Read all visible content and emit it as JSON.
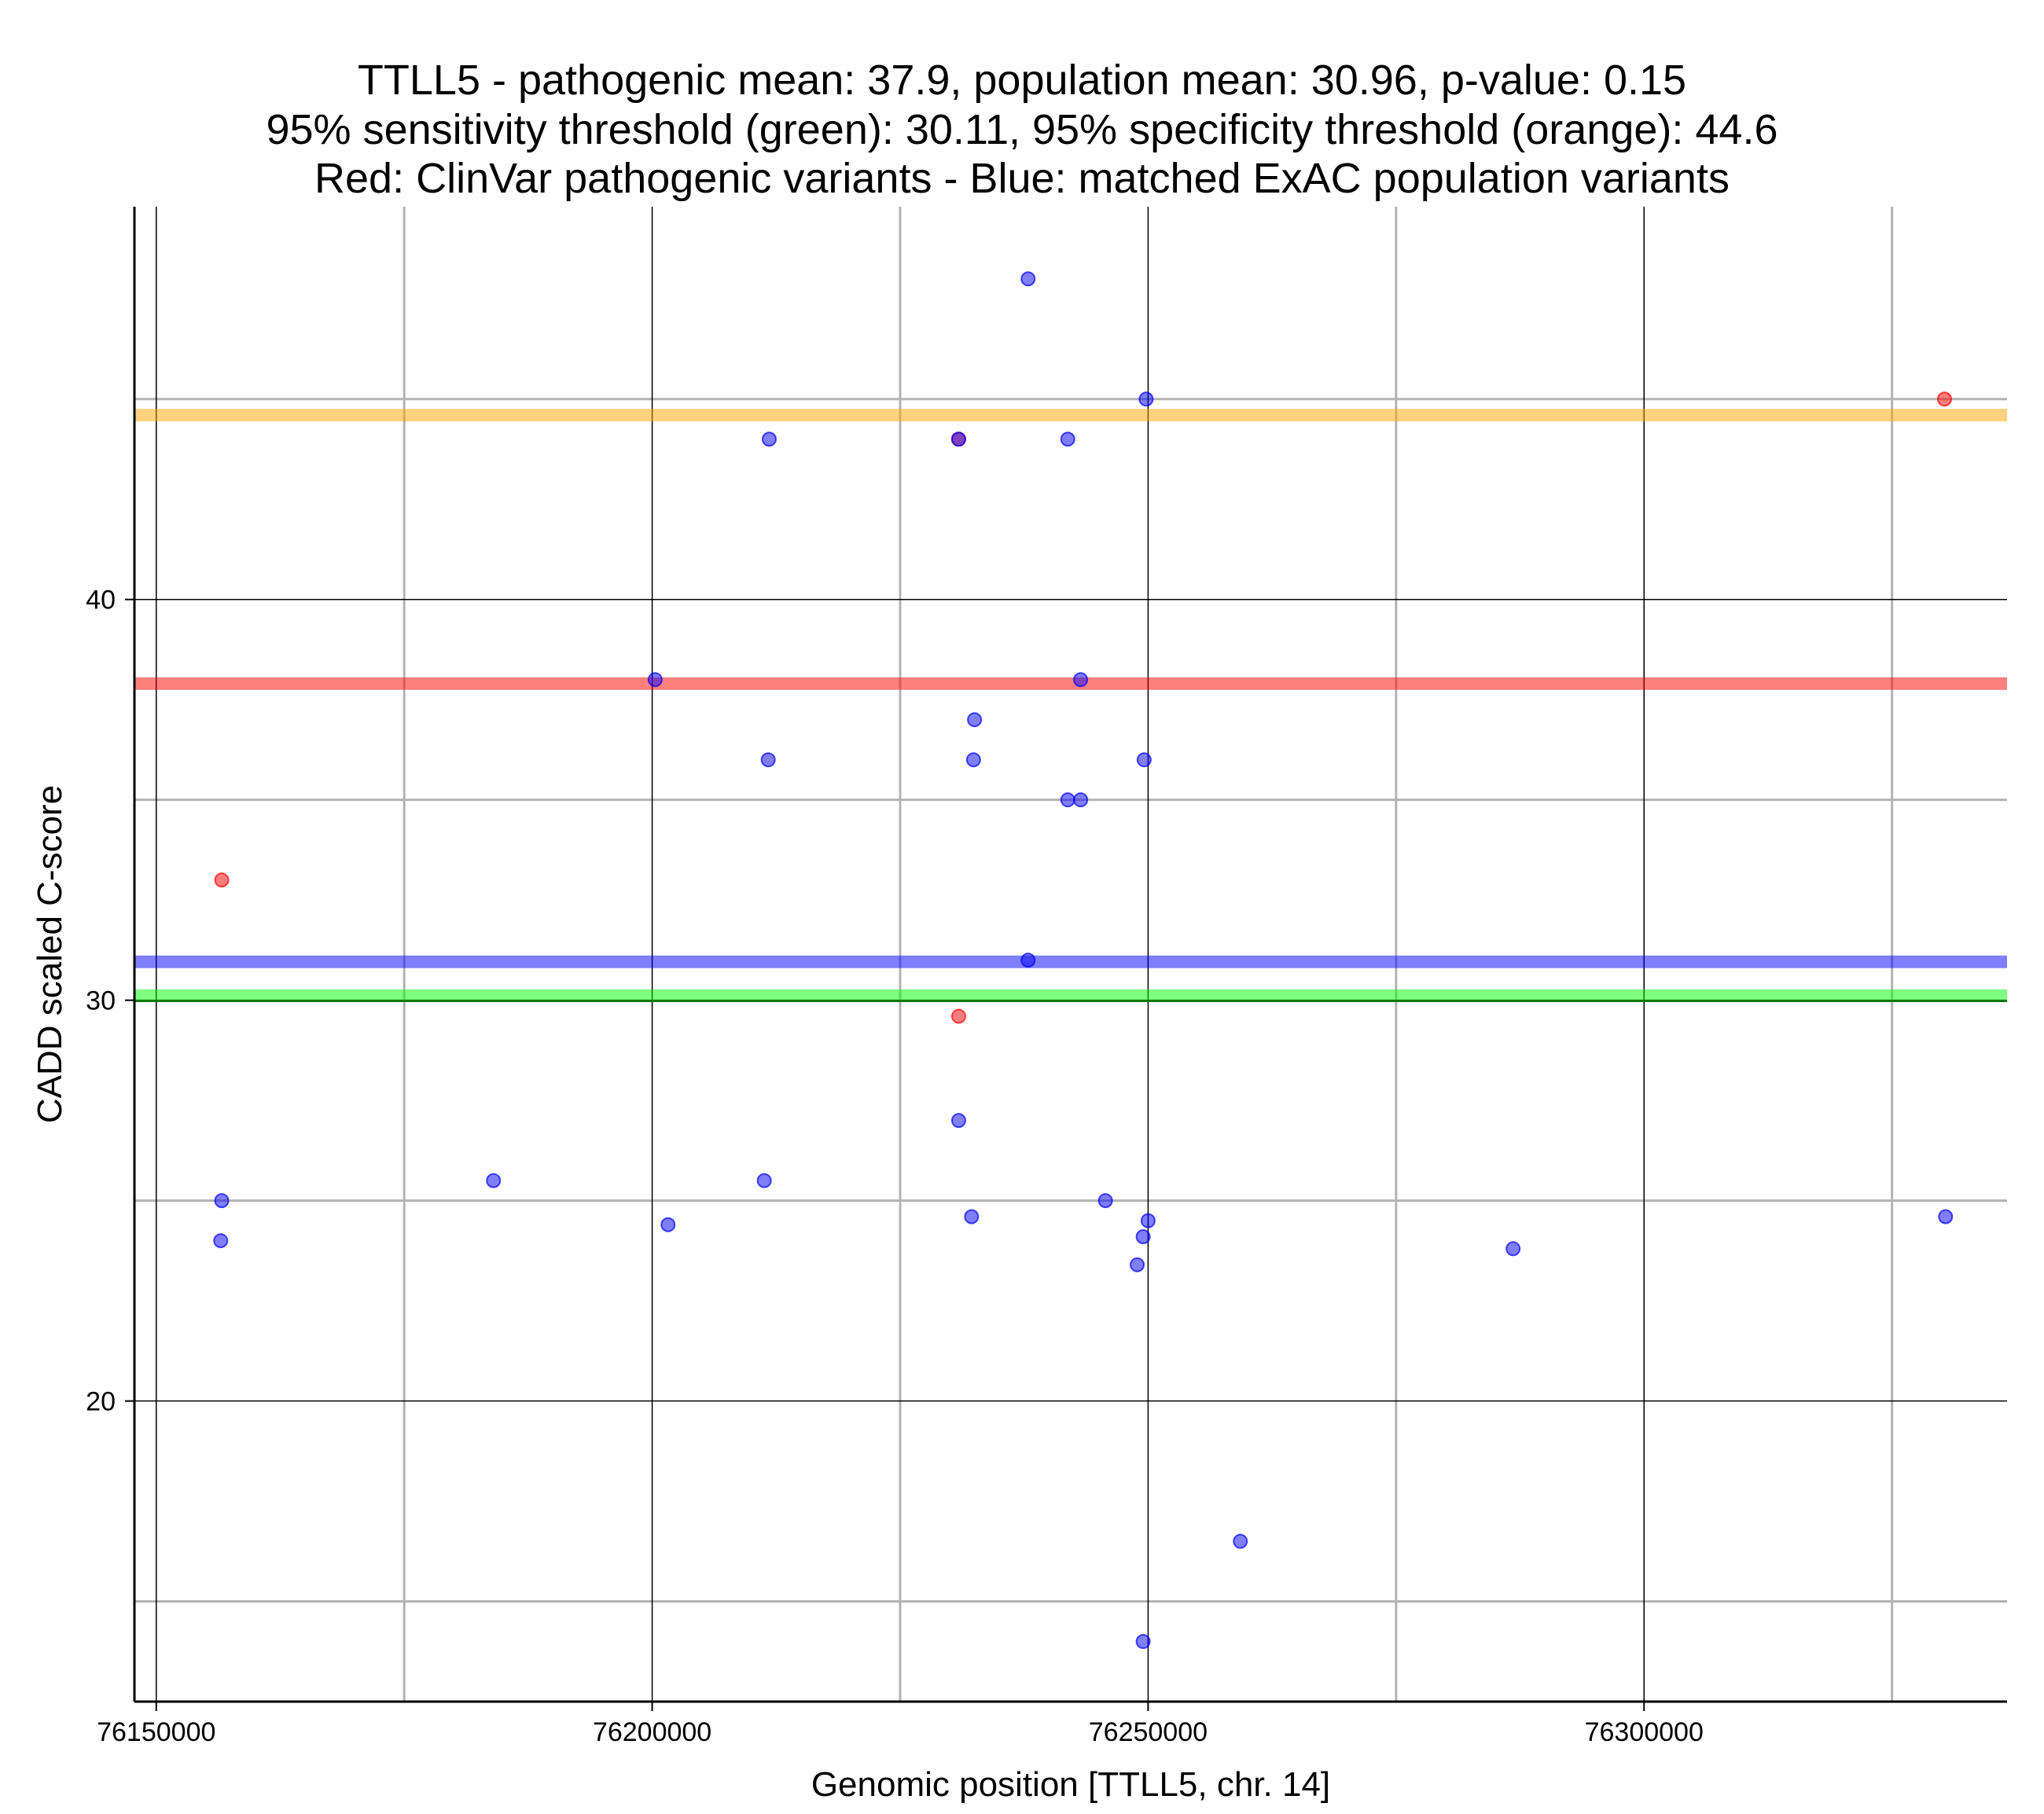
{
  "chart_data": {
    "type": "scatter",
    "title_lines": [
      "TTLL5 - pathogenic mean: 37.9, population mean: 30.96, p-value: 0.15",
      "95% sensitivity threshold (green): 30.11, 95% specificity threshold (orange): 44.6",
      "Red: ClinVar pathogenic variants - Blue: matched ExAC population variants"
    ],
    "xlabel": "Genomic position [TTLL5, chr. 14]",
    "ylabel": "CADD scaled C-score",
    "xlim": [
      76147800,
      76336600
    ],
    "ylim": [
      12.5,
      49.8
    ],
    "x_ticks": [
      76150000,
      76200000,
      76250000,
      76300000
    ],
    "x_tick_labels": [
      "76150000",
      "76200000",
      "76250000",
      "76300000"
    ],
    "x_minor_gridlines": [
      76175000,
      76225000,
      76275000,
      76325000
    ],
    "y_ticks": [
      20,
      30,
      40
    ],
    "y_tick_labels": [
      "20",
      "30",
      "40"
    ],
    "y_minor_gridlines": [
      15,
      25,
      35,
      45
    ],
    "grid": true,
    "hlines": [
      {
        "name": "95% specificity threshold",
        "value": 44.6,
        "color": "#ffa500"
      },
      {
        "name": "pathogenic mean",
        "value": 37.9,
        "color": "#ff0000"
      },
      {
        "name": "population mean",
        "value": 30.96,
        "color": "#0000ff"
      },
      {
        "name": "95% sensitivity threshold",
        "value": 30.11,
        "color": "#00ff00"
      }
    ],
    "series": [
      {
        "name": "ClinVar pathogenic variants",
        "color": "#ff0000",
        "points": [
          [
            76156600,
            33.0
          ],
          [
            76230900,
            44.0
          ],
          [
            76230900,
            29.6
          ],
          [
            76330300,
            45.0
          ]
        ]
      },
      {
        "name": "matched ExAC population variants",
        "color": "#0000ff",
        "points": [
          [
            76237900,
            48.0
          ],
          [
            76249800,
            45.0
          ],
          [
            76211800,
            44.0
          ],
          [
            76230900,
            44.0
          ],
          [
            76241900,
            44.0
          ],
          [
            76200300,
            38.0
          ],
          [
            76243200,
            38.0
          ],
          [
            76232500,
            37.0
          ],
          [
            76211700,
            36.0
          ],
          [
            76232400,
            36.0
          ],
          [
            76249600,
            36.0
          ],
          [
            76241900,
            35.0
          ],
          [
            76243200,
            35.0
          ],
          [
            76237900,
            31.0
          ],
          [
            76230900,
            27.0
          ],
          [
            76156600,
            25.0
          ],
          [
            76184000,
            25.5
          ],
          [
            76211300,
            25.5
          ],
          [
            76245700,
            25.0
          ],
          [
            76156500,
            24.0
          ],
          [
            76201600,
            24.4
          ],
          [
            76232200,
            24.6
          ],
          [
            76250000,
            24.5
          ],
          [
            76249500,
            24.1
          ],
          [
            76248900,
            23.4
          ],
          [
            76286800,
            23.8
          ],
          [
            76330400,
            24.6
          ],
          [
            76259300,
            16.5
          ],
          [
            76249500,
            14.0
          ]
        ]
      }
    ]
  }
}
